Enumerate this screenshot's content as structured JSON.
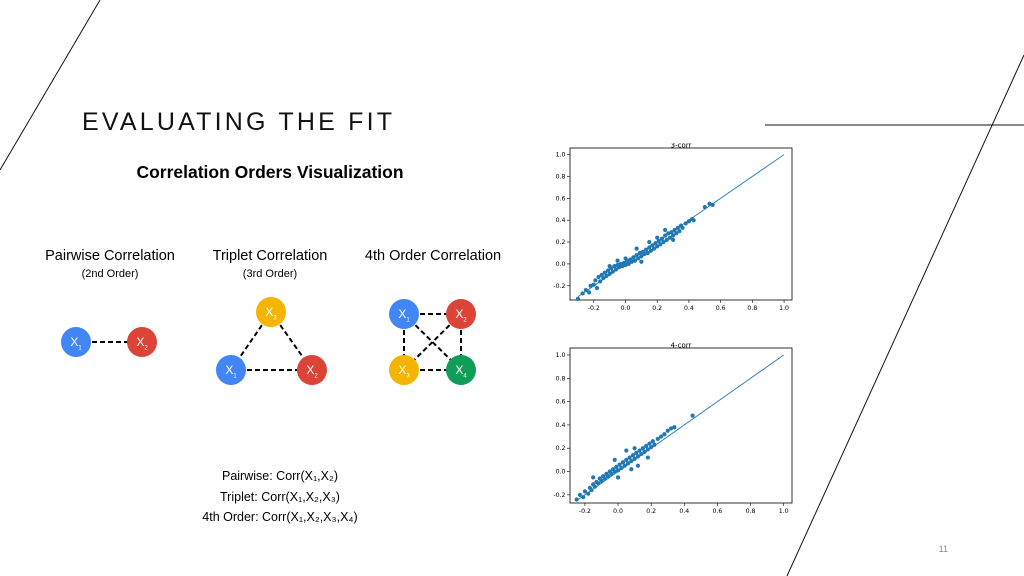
{
  "slide": {
    "title": "EVALUATING THE FIT",
    "page_number": "11"
  },
  "figure": {
    "title": "Correlation Orders Visualization",
    "sections": [
      {
        "label": "Pairwise Correlation",
        "order": "(2nd Order)"
      },
      {
        "label": "Triplet Correlation",
        "order": "(3rd Order)"
      },
      {
        "label": "4th Order Correlation",
        "order": ""
      }
    ],
    "formulas": {
      "pairwise": "Pairwise: Corr(X₁,X₂)",
      "triplet": "Triplet: Corr(X₁,X₂,X₃)",
      "fourth": "4th Order: Corr(X₁,X₂,X₃,X₄)"
    },
    "colors": {
      "blue": "#4285f4",
      "red": "#db4437",
      "yellow": "#f4b400",
      "green": "#0f9d58"
    }
  },
  "chart_data": [
    {
      "type": "scatter",
      "title": "3-corr",
      "xlim": [
        -0.35,
        1.05
      ],
      "ylim": [
        -0.33,
        1.06
      ],
      "xticks": [
        -0.2,
        0.0,
        0.2,
        0.4,
        0.6,
        0.8,
        1.0
      ],
      "yticks": [
        -0.2,
        0.0,
        0.2,
        0.4,
        0.6,
        0.8,
        1.0
      ],
      "reference_line": {
        "x": [
          -0.3,
          1.0
        ],
        "y": [
          -0.3,
          1.0
        ]
      },
      "points": [
        [
          -0.3,
          -0.32
        ],
        [
          -0.27,
          -0.27
        ],
        [
          -0.25,
          -0.24
        ],
        [
          -0.23,
          -0.26
        ],
        [
          -0.22,
          -0.2
        ],
        [
          -0.2,
          -0.19
        ],
        [
          -0.19,
          -0.15
        ],
        [
          -0.18,
          -0.22
        ],
        [
          -0.17,
          -0.12
        ],
        [
          -0.16,
          -0.16
        ],
        [
          -0.15,
          -0.1
        ],
        [
          -0.14,
          -0.13
        ],
        [
          -0.13,
          -0.08
        ],
        [
          -0.12,
          -0.11
        ],
        [
          -0.11,
          -0.06
        ],
        [
          -0.1,
          -0.09
        ],
        [
          -0.09,
          -0.04
        ],
        [
          -0.08,
          -0.07
        ],
        [
          -0.07,
          -0.02
        ],
        [
          -0.06,
          -0.05
        ],
        [
          -0.05,
          -0.01
        ],
        [
          -0.04,
          -0.03
        ],
        [
          -0.03,
          0.0
        ],
        [
          -0.02,
          -0.02
        ],
        [
          -0.01,
          0.01
        ],
        [
          0.0,
          -0.01
        ],
        [
          0.01,
          0.03
        ],
        [
          0.02,
          0.0
        ],
        [
          0.03,
          0.04
        ],
        [
          0.04,
          0.02
        ],
        [
          0.05,
          0.06
        ],
        [
          0.06,
          0.03
        ],
        [
          0.07,
          0.08
        ],
        [
          0.08,
          0.05
        ],
        [
          0.09,
          0.1
        ],
        [
          0.1,
          0.07
        ],
        [
          0.11,
          0.11
        ],
        [
          0.12,
          0.09
        ],
        [
          0.13,
          0.13
        ],
        [
          0.14,
          0.1
        ],
        [
          0.15,
          0.15
        ],
        [
          0.16,
          0.12
        ],
        [
          0.17,
          0.17
        ],
        [
          0.18,
          0.14
        ],
        [
          0.19,
          0.19
        ],
        [
          0.2,
          0.16
        ],
        [
          0.21,
          0.21
        ],
        [
          0.22,
          0.18
        ],
        [
          0.23,
          0.23
        ],
        [
          0.24,
          0.2
        ],
        [
          0.25,
          0.26
        ],
        [
          0.26,
          0.22
        ],
        [
          0.27,
          0.28
        ],
        [
          0.28,
          0.24
        ],
        [
          0.29,
          0.29
        ],
        [
          0.3,
          0.26
        ],
        [
          0.31,
          0.31
        ],
        [
          0.32,
          0.28
        ],
        [
          0.33,
          0.33
        ],
        [
          0.34,
          0.3
        ],
        [
          0.35,
          0.35
        ],
        [
          0.36,
          0.33
        ],
        [
          0.38,
          0.37
        ],
        [
          0.4,
          0.39
        ],
        [
          0.42,
          0.41
        ],
        [
          0.43,
          0.4
        ],
        [
          0.5,
          0.52
        ],
        [
          0.53,
          0.55
        ],
        [
          0.55,
          0.54
        ],
        [
          0.07,
          0.14
        ],
        [
          0.15,
          0.2
        ],
        [
          -0.1,
          -0.02
        ],
        [
          0.2,
          0.24
        ],
        [
          0.25,
          0.31
        ],
        [
          0.0,
          0.05
        ],
        [
          -0.05,
          0.03
        ],
        [
          0.1,
          0.02
        ],
        [
          0.3,
          0.22
        ]
      ]
    },
    {
      "type": "scatter",
      "title": "4-corr",
      "xlim": [
        -0.29,
        1.05
      ],
      "ylim": [
        -0.27,
        1.06
      ],
      "xticks": [
        -0.2,
        0.0,
        0.2,
        0.4,
        0.6,
        0.8,
        1.0
      ],
      "yticks": [
        -0.2,
        0.0,
        0.2,
        0.4,
        0.6,
        0.8,
        1.0
      ],
      "reference_line": {
        "x": [
          -0.25,
          1.0
        ],
        "y": [
          -0.25,
          1.0
        ]
      },
      "points": [
        [
          -0.25,
          -0.24
        ],
        [
          -0.23,
          -0.2
        ],
        [
          -0.21,
          -0.22
        ],
        [
          -0.2,
          -0.17
        ],
        [
          -0.18,
          -0.19
        ],
        [
          -0.17,
          -0.14
        ],
        [
          -0.16,
          -0.16
        ],
        [
          -0.15,
          -0.11
        ],
        [
          -0.14,
          -0.13
        ],
        [
          -0.13,
          -0.09
        ],
        [
          -0.12,
          -0.1
        ],
        [
          -0.11,
          -0.06
        ],
        [
          -0.1,
          -0.08
        ],
        [
          -0.09,
          -0.04
        ],
        [
          -0.08,
          -0.06
        ],
        [
          -0.07,
          -0.02
        ],
        [
          -0.06,
          -0.04
        ],
        [
          -0.05,
          0.0
        ],
        [
          -0.04,
          -0.02
        ],
        [
          -0.03,
          0.02
        ],
        [
          -0.02,
          0.0
        ],
        [
          -0.01,
          0.04
        ],
        [
          0.0,
          0.01
        ],
        [
          0.01,
          0.06
        ],
        [
          0.02,
          0.03
        ],
        [
          0.03,
          0.08
        ],
        [
          0.04,
          0.05
        ],
        [
          0.05,
          0.1
        ],
        [
          0.06,
          0.07
        ],
        [
          0.07,
          0.12
        ],
        [
          0.08,
          0.09
        ],
        [
          0.09,
          0.14
        ],
        [
          0.1,
          0.11
        ],
        [
          0.11,
          0.16
        ],
        [
          0.12,
          0.13
        ],
        [
          0.13,
          0.18
        ],
        [
          0.14,
          0.15
        ],
        [
          0.15,
          0.2
        ],
        [
          0.16,
          0.17
        ],
        [
          0.17,
          0.22
        ],
        [
          0.18,
          0.19
        ],
        [
          0.19,
          0.24
        ],
        [
          0.2,
          0.21
        ],
        [
          0.21,
          0.26
        ],
        [
          0.22,
          0.23
        ],
        [
          0.24,
          0.28
        ],
        [
          0.26,
          0.3
        ],
        [
          0.28,
          0.32
        ],
        [
          0.3,
          0.35
        ],
        [
          0.32,
          0.37
        ],
        [
          0.34,
          0.38
        ],
        [
          0.45,
          0.48
        ],
        [
          0.05,
          0.18
        ],
        [
          -0.02,
          0.1
        ],
        [
          0.12,
          0.05
        ],
        [
          0.0,
          -0.05
        ],
        [
          -0.15,
          -0.05
        ],
        [
          0.18,
          0.12
        ],
        [
          0.08,
          0.02
        ],
        [
          0.1,
          0.2
        ]
      ]
    }
  ]
}
